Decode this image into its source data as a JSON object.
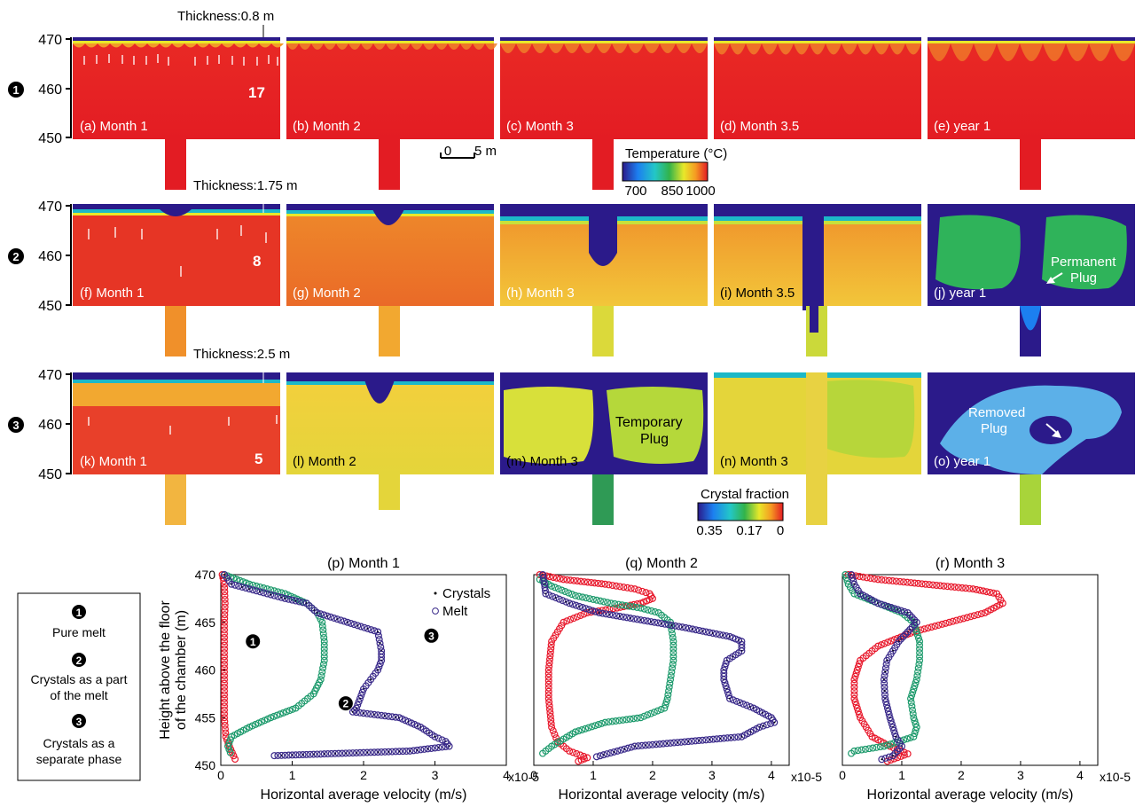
{
  "figure": {
    "y_ticks": [
      "470",
      "460",
      "450"
    ],
    "rows": [
      {
        "marker": "1",
        "thickness_label": "Thickness:0.8 m",
        "count": "17",
        "panels": [
          "(a) Month 1",
          "(b) Month 2",
          "(c) Month 3",
          "(d) Month 3.5",
          "(e) year 1"
        ]
      },
      {
        "marker": "2",
        "thickness_label": "Thickness:1.75 m",
        "count": "8",
        "panels": [
          "(f) Month 1",
          "(g) Month 2",
          "(h) Month 3",
          "(i) Month 3.5",
          "(j) year 1"
        ],
        "annotation": [
          "Permanent",
          "Plug"
        ]
      },
      {
        "marker": "3",
        "thickness_label": "Thickness:2.5 m",
        "count": "5",
        "panels": [
          "(k) Month 1",
          "(l) Month 2",
          "(m) Month 3",
          "(n) Month 3",
          "(o) year 1"
        ],
        "annotation_temp": [
          "Temporary",
          "Plug"
        ],
        "annotation_removed": [
          "Removed",
          "Plug"
        ]
      }
    ],
    "scale_bar": {
      "left": "0",
      "right": "5 m"
    },
    "temperature_colorbar": {
      "title": "Temperature (°C)",
      "ticks": [
        "700",
        "850",
        "1000"
      ]
    },
    "crystal_colorbar": {
      "title": "Crystal fraction",
      "ticks": [
        "0.35",
        "0.17",
        "0"
      ]
    },
    "legend_box": {
      "items": [
        {
          "marker": "1",
          "lines": [
            "Pure melt"
          ]
        },
        {
          "marker": "2",
          "lines": [
            "Crystals as a part",
            "of the melt"
          ]
        },
        {
          "marker": "3",
          "lines": [
            "Crystals as a",
            "separate phase"
          ]
        }
      ]
    }
  },
  "chart_data": [
    {
      "type": "scatter",
      "title": "(p) Month 1",
      "xlabel": "Horizontal average velocity (m/s)",
      "ylabel": "Height above the floor of the chamber (m)",
      "x_multiplier": "x10-5",
      "xlim": [
        0,
        4
      ],
      "ylim": [
        450,
        470
      ],
      "xticks": [
        0,
        1,
        2,
        3,
        4
      ],
      "yticks": [
        450,
        455,
        460,
        465,
        470
      ],
      "legend": {
        "position": "top-right",
        "entries": [
          "Crystals",
          "Melt"
        ]
      },
      "series": [
        {
          "name": "1",
          "color": "#e8192c",
          "points": [
            [
              0.02,
              470
            ],
            [
              0.05,
              469
            ],
            [
              0.06,
              467
            ],
            [
              0.05,
              465
            ],
            [
              0.05,
              463
            ],
            [
              0.05,
              461
            ],
            [
              0.05,
              459
            ],
            [
              0.05,
              457
            ],
            [
              0.05,
              455
            ],
            [
              0.07,
              453
            ],
            [
              0.12,
              452
            ],
            [
              0.18,
              451
            ],
            [
              0.22,
              450.3
            ]
          ]
        },
        {
          "name": "2",
          "color": "#1d9a6c",
          "points": [
            [
              0.05,
              470
            ],
            [
              0.4,
              469
            ],
            [
              0.9,
              468
            ],
            [
              1.2,
              467
            ],
            [
              1.35,
              466
            ],
            [
              1.42,
              465
            ],
            [
              1.45,
              463
            ],
            [
              1.45,
              461
            ],
            [
              1.4,
              459
            ],
            [
              1.3,
              457.5
            ],
            [
              1.05,
              456
            ],
            [
              0.7,
              455
            ],
            [
              0.4,
              454
            ],
            [
              0.15,
              453
            ],
            [
              0.1,
              452
            ],
            [
              0.15,
              451
            ]
          ]
        },
        {
          "name": "3",
          "color": "#3a2a8a",
          "points": [
            [
              0.05,
              470
            ],
            [
              0.15,
              469
            ],
            [
              0.4,
              468.5
            ],
            [
              0.9,
              467.5
            ],
            [
              1.2,
              467
            ],
            [
              1.35,
              466
            ],
            [
              2.2,
              464
            ],
            [
              2.25,
              462
            ],
            [
              2.25,
              461
            ],
            [
              2.2,
              460
            ],
            [
              2.1,
              459
            ],
            [
              2.0,
              458
            ],
            [
              1.95,
              457
            ],
            [
              1.9,
              456
            ],
            [
              1.85,
              455.6
            ],
            [
              2.5,
              455
            ],
            [
              2.8,
              454
            ],
            [
              3.0,
              453
            ],
            [
              3.15,
              452.5
            ],
            [
              3.2,
              452
            ],
            [
              2.65,
              451.5
            ],
            [
              0.7,
              451
            ]
          ]
        }
      ]
    },
    {
      "type": "scatter",
      "title": "(q) Month 2",
      "xlabel": "Horizontal average velocity (m/s)",
      "x_multiplier": "x10-5",
      "xlim": [
        0,
        4.3
      ],
      "ylim": [
        450,
        470
      ],
      "xticks": [
        0,
        1,
        2,
        3,
        4
      ],
      "series": [
        {
          "name": "1",
          "color": "#e8192c",
          "points": [
            [
              0.1,
              470
            ],
            [
              0.5,
              469.5
            ],
            [
              1.2,
              469
            ],
            [
              1.7,
              468.5
            ],
            [
              1.95,
              468
            ],
            [
              2.0,
              467.5
            ],
            [
              1.8,
              467
            ],
            [
              1.4,
              466.5
            ],
            [
              0.9,
              466
            ],
            [
              0.5,
              465
            ],
            [
              0.3,
              463
            ],
            [
              0.25,
              460
            ],
            [
              0.25,
              457
            ],
            [
              0.3,
              454
            ],
            [
              0.4,
              452.5
            ],
            [
              0.6,
              451.5
            ],
            [
              0.9,
              450.8
            ],
            [
              0.7,
              450.3
            ]
          ]
        },
        {
          "name": "2",
          "color": "#1d9a6c",
          "points": [
            [
              0.1,
              469.5
            ],
            [
              0.3,
              468.8
            ],
            [
              0.7,
              467.8
            ],
            [
              1.3,
              467
            ],
            [
              1.8,
              466.5
            ],
            [
              2.1,
              466
            ],
            [
              2.3,
              465
            ],
            [
              2.35,
              463
            ],
            [
              2.35,
              461
            ],
            [
              2.3,
              459
            ],
            [
              2.25,
              457
            ],
            [
              2.2,
              456
            ],
            [
              1.8,
              455
            ],
            [
              1.2,
              454.5
            ],
            [
              0.7,
              453.5
            ],
            [
              0.3,
              452
            ],
            [
              0.1,
              451
            ]
          ]
        },
        {
          "name": "3",
          "color": "#3a2a8a",
          "points": [
            [
              0.15,
              470
            ],
            [
              0.18,
              469
            ],
            [
              0.2,
              468
            ],
            [
              0.6,
              467
            ],
            [
              1.1,
              466
            ],
            [
              2.5,
              464.5
            ],
            [
              3.3,
              463.5
            ],
            [
              3.5,
              463
            ],
            [
              3.5,
              462
            ],
            [
              3.25,
              461
            ],
            [
              3.2,
              460
            ],
            [
              3.2,
              459
            ],
            [
              3.25,
              458
            ],
            [
              3.3,
              457
            ],
            [
              3.7,
              456
            ],
            [
              4.0,
              455
            ],
            [
              4.05,
              454.5
            ],
            [
              3.8,
              454
            ],
            [
              3.5,
              453
            ],
            [
              1.7,
              452
            ],
            [
              1.0,
              450.8
            ]
          ]
        }
      ]
    },
    {
      "type": "scatter",
      "title": "(r) Month 3",
      "xlabel": "Horizontal average velocity (m/s)",
      "x_multiplier": "x10-5",
      "xlim": [
        0,
        4.3
      ],
      "ylim": [
        450,
        470
      ],
      "xticks": [
        0,
        1,
        2,
        3,
        4
      ],
      "series": [
        {
          "name": "1",
          "color": "#e8192c",
          "points": [
            [
              0.1,
              470
            ],
            [
              0.6,
              469.5
            ],
            [
              1.4,
              469
            ],
            [
              2.2,
              468.5
            ],
            [
              2.6,
              468
            ],
            [
              2.7,
              467
            ],
            [
              2.4,
              466
            ],
            [
              1.8,
              465
            ],
            [
              1.2,
              464
            ],
            [
              0.6,
              462.5
            ],
            [
              0.3,
              461
            ],
            [
              0.2,
              459
            ],
            [
              0.2,
              457
            ],
            [
              0.3,
              455
            ],
            [
              0.5,
              453
            ],
            [
              0.8,
              452
            ],
            [
              1.1,
              451.2
            ],
            [
              0.7,
              450.3
            ]
          ]
        },
        {
          "name": "2",
          "color": "#1d9a6c",
          "points": [
            [
              0.05,
              470
            ],
            [
              0.1,
              469
            ],
            [
              0.2,
              468
            ],
            [
              0.6,
              467
            ],
            [
              1.0,
              466
            ],
            [
              1.2,
              465
            ],
            [
              1.3,
              463
            ],
            [
              1.3,
              461
            ],
            [
              1.25,
              459
            ],
            [
              1.15,
              457
            ],
            [
              1.2,
              455
            ],
            [
              1.25,
              454
            ],
            [
              1.2,
              453
            ],
            [
              0.7,
              452
            ],
            [
              0.2,
              451.5
            ],
            [
              0.1,
              451
            ]
          ]
        },
        {
          "name": "3",
          "color": "#3a2a8a",
          "points": [
            [
              0.15,
              470
            ],
            [
              0.2,
              469
            ],
            [
              0.3,
              468
            ],
            [
              0.6,
              467
            ],
            [
              1.1,
              466
            ],
            [
              1.25,
              465
            ],
            [
              1.1,
              464
            ],
            [
              0.95,
              463
            ],
            [
              0.85,
              462
            ],
            [
              0.75,
              461
            ],
            [
              0.7,
              459
            ],
            [
              0.72,
              457
            ],
            [
              0.8,
              455
            ],
            [
              0.9,
              453
            ],
            [
              1.0,
              452
            ],
            [
              0.85,
              451
            ],
            [
              0.6,
              450.5
            ]
          ]
        }
      ]
    }
  ]
}
